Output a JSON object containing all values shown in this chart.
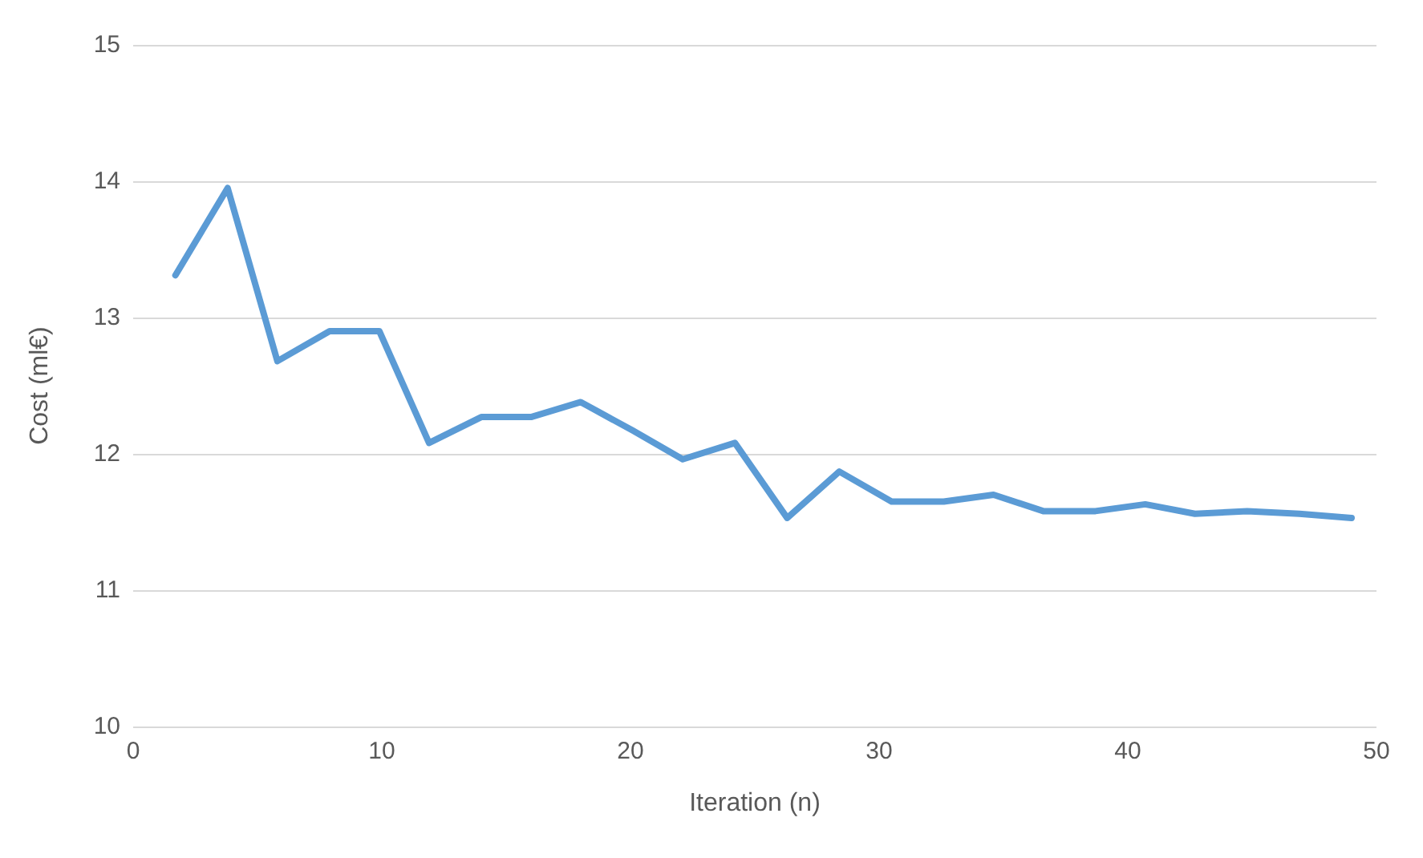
{
  "chart_data": {
    "type": "line",
    "xlabel": "Iteration (n)",
    "ylabel": "Cost (ml€)",
    "x": [
      1.7,
      3.8,
      5.8,
      7.9,
      9.9,
      11.9,
      14,
      16,
      18,
      20.1,
      22.1,
      24.2,
      26.3,
      28.4,
      30.5,
      32.6,
      34.6,
      36.6,
      38.7,
      40.7,
      42.7,
      44.8,
      46.9,
      49
    ],
    "series": [
      {
        "color": "#5b9bd5",
        "values": [
          13.31,
          13.95,
          12.68,
          12.9,
          12.9,
          12.08,
          12.27,
          12.27,
          12.38,
          12.17,
          11.96,
          12.08,
          11.53,
          11.87,
          11.65,
          11.65,
          11.7,
          11.58,
          11.58,
          11.63,
          11.56,
          11.58,
          11.56,
          11.53
        ]
      }
    ],
    "xlim": [
      0,
      50
    ],
    "xticks": [
      0,
      10,
      20,
      30,
      40,
      50
    ],
    "ylim": [
      10,
      15
    ],
    "yticks": [
      10,
      11,
      12,
      13,
      14,
      15
    ],
    "grid": "y",
    "marker": "none",
    "line_style": "solid"
  }
}
